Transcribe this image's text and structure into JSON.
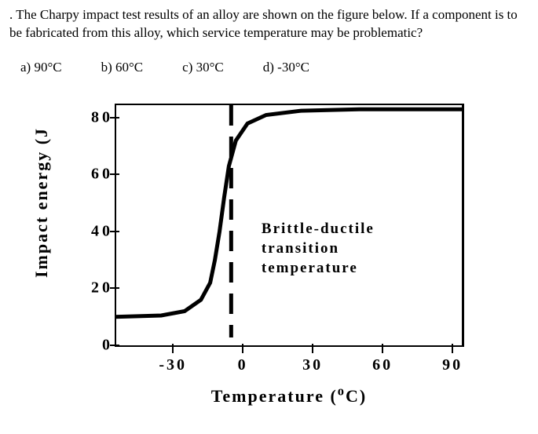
{
  "question": {
    "text": ". The Charpy impact test results of an alloy are shown on the figure below. If a component is to be fabricated from this alloy, which service temperature may be problematic?"
  },
  "options": {
    "a": "a)  90°C",
    "b": "b) 60°C",
    "c": "c) 30°C",
    "d": "d) -30°C"
  },
  "chart": {
    "type": "line",
    "ylabel": "Impact energy (J",
    "xlabel": "Temperature (°C)",
    "ylim": [
      0,
      85
    ],
    "xlim": [
      -55,
      95
    ],
    "yticks": [
      0,
      20,
      40,
      60,
      80
    ],
    "xticks": [
      -30,
      0,
      30,
      60,
      90
    ],
    "ytick_labels": [
      "0",
      "20",
      "40",
      "60",
      "80"
    ],
    "xtick_labels": [
      "-30",
      "0",
      "30",
      "60",
      "90"
    ],
    "curve_color": "#000000",
    "curve_width": 5,
    "background_color": "#ffffff",
    "annotation_lines": [
      "Brittle-ductile",
      "transition",
      "temperature"
    ],
    "transition_temp": -5,
    "curve_points": [
      [
        -55,
        10
      ],
      [
        -35,
        10.5
      ],
      [
        -25,
        12
      ],
      [
        -18,
        16
      ],
      [
        -14,
        22
      ],
      [
        -12,
        30
      ],
      [
        -10,
        40
      ],
      [
        -8,
        52
      ],
      [
        -6,
        63
      ],
      [
        -3,
        72
      ],
      [
        2,
        78
      ],
      [
        10,
        81
      ],
      [
        25,
        82.5
      ],
      [
        50,
        83
      ],
      [
        95,
        83
      ]
    ]
  }
}
